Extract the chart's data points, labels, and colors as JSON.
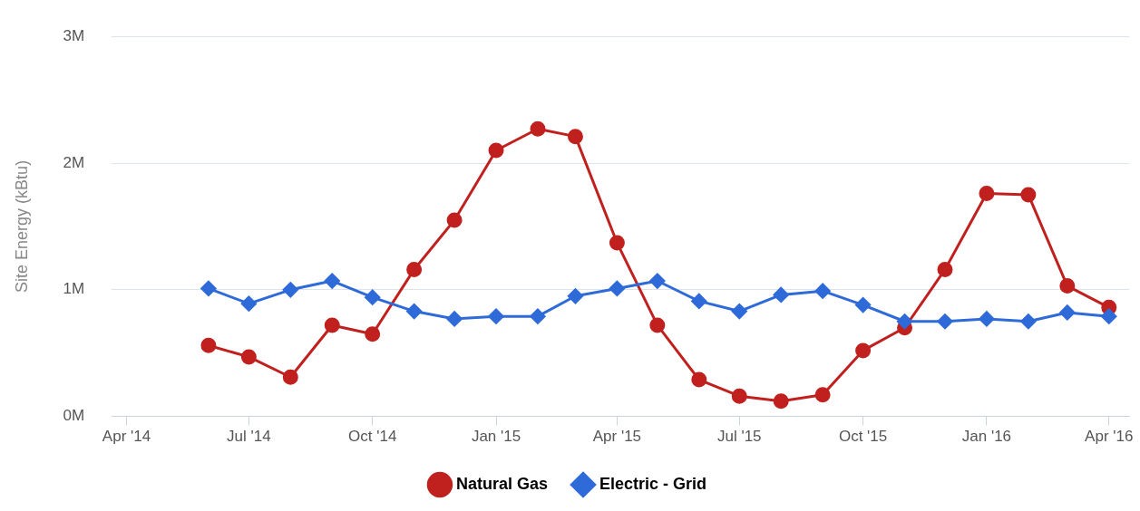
{
  "chart_data": {
    "type": "line",
    "ylabel": "Site Energy (kBtu)",
    "x": [
      "2014-06",
      "2014-07",
      "2014-08",
      "2014-09",
      "2014-10",
      "2014-11",
      "2014-12",
      "2015-01",
      "2015-02",
      "2015-03",
      "2015-04",
      "2015-05",
      "2015-06",
      "2015-07",
      "2015-08",
      "2015-09",
      "2015-10",
      "2015-11",
      "2015-12",
      "2016-01",
      "2016-02",
      "2016-03",
      "2016-04"
    ],
    "series": [
      {
        "name": "Natural Gas",
        "color": "#c0201e",
        "marker": "circle",
        "values": [
          560000,
          470000,
          310000,
          720000,
          650000,
          1160000,
          1550000,
          2100000,
          2270000,
          2210000,
          1370000,
          720000,
          290000,
          160000,
          120000,
          170000,
          520000,
          700000,
          1160000,
          1760000,
          1750000,
          1030000,
          860000
        ]
      },
      {
        "name": "Electric - Grid",
        "color": "#2e6ad8",
        "marker": "diamond",
        "values": [
          1010000,
          890000,
          1000000,
          1070000,
          940000,
          830000,
          770000,
          790000,
          790000,
          950000,
          1010000,
          1070000,
          910000,
          830000,
          960000,
          990000,
          880000,
          750000,
          750000,
          770000,
          750000,
          820000,
          790000
        ]
      }
    ],
    "xlim": [
      "2014-03-21",
      "2016-04-16"
    ],
    "xticks": [
      {
        "value": "2014-04",
        "label": "Apr '14"
      },
      {
        "value": "2014-07",
        "label": "Jul '14"
      },
      {
        "value": "2014-10",
        "label": "Oct '14"
      },
      {
        "value": "2015-01",
        "label": "Jan '15"
      },
      {
        "value": "2015-04",
        "label": "Apr '15"
      },
      {
        "value": "2015-07",
        "label": "Jul '15"
      },
      {
        "value": "2015-10",
        "label": "Oct '15"
      },
      {
        "value": "2016-01",
        "label": "Jan '16"
      },
      {
        "value": "2016-04",
        "label": "Apr '16"
      }
    ],
    "ylim": [
      0,
      3000000
    ],
    "yticks": [
      {
        "value": 0,
        "label": "0M"
      },
      {
        "value": 1000000,
        "label": "1M"
      },
      {
        "value": 2000000,
        "label": "2M"
      },
      {
        "value": 3000000,
        "label": "3M"
      }
    ],
    "grid": "y",
    "legend": "bottom",
    "line_style": "solid"
  }
}
